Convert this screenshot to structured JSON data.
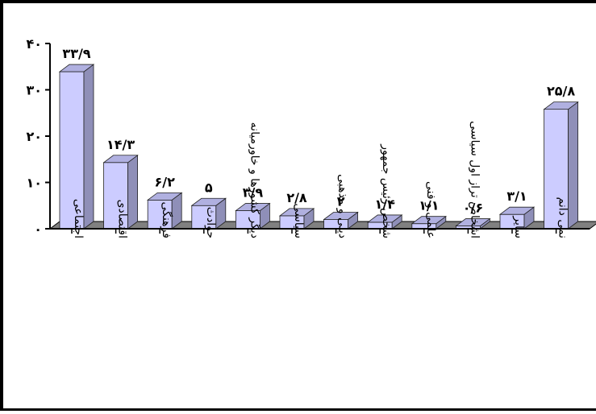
{
  "chart_data": {
    "type": "bar",
    "categories": [
      "اجتماعی",
      "اقتصادی",
      "فرهنگی",
      "حوادث",
      "دیگر کشورها و خاورمیانه",
      "سیاسی",
      "دینی و مذهبی",
      "شخص رئیس جمهور",
      "علمی و فنی",
      "اشخاص تراز اول سیاسی",
      "سایر",
      "نمی دانم"
    ],
    "values": [
      33.9,
      14.3,
      6.2,
      5,
      3.9,
      2.8,
      2,
      1.4,
      1.1,
      0.6,
      3.1,
      25.8
    ],
    "value_labels": [
      "۳۳/۹",
      "۱۴/۳",
      "۶/۲",
      "۵",
      "۳/۹",
      "۲/۸",
      "۲",
      "۱/۴",
      "۱/۱",
      "۰/۶",
      "۳/۱",
      "۲۵/۸"
    ],
    "y_ticks": [
      0,
      10,
      20,
      30,
      40
    ],
    "y_tick_labels": [
      "۰",
      "۱۰",
      "۲۰",
      "۳۰",
      "۴۰"
    ],
    "ylim": [
      0,
      40
    ],
    "style": "3d-column",
    "grid": false,
    "colors": {
      "bar_front": "#ccccff",
      "bar_side": "#8f8fb8",
      "bar_top": "#b0b0e0",
      "floor": "#808080"
    }
  }
}
